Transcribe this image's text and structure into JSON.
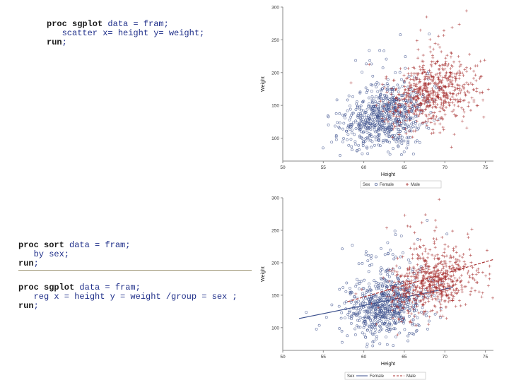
{
  "code_blocks": [
    {
      "lines": [
        {
          "kw": "proc sgplot",
          "rest": " data = fram;"
        },
        {
          "kw": "",
          "rest": "   scatter x= height y= weight;"
        },
        {
          "kw": "run",
          "rest": ";"
        }
      ]
    },
    {
      "lines": [
        {
          "kw": "proc sort",
          "rest": " data = fram;"
        },
        {
          "kw": "",
          "rest": "   by sex;"
        },
        {
          "kw": "run",
          "rest": ";"
        }
      ]
    },
    {
      "lines": [
        {
          "kw": "proc sgplot",
          "rest": " data = fram;"
        },
        {
          "kw": "",
          "rest": "   reg x = height y = weight /group = sex ;"
        },
        {
          "kw": "run",
          "rest": ";"
        }
      ]
    }
  ],
  "colors": {
    "female": "#3b4f8c",
    "male": "#a83232",
    "axis": "#888888"
  },
  "chart_data": [
    {
      "type": "scatter",
      "title": "",
      "xlabel": "Height",
      "ylabel": "Weight",
      "xlim": [
        50,
        76
      ],
      "ylim": [
        65,
        300
      ],
      "xticks": [
        50,
        55,
        60,
        65,
        70,
        75
      ],
      "yticks": [
        100,
        150,
        200,
        250,
        300
      ],
      "legend": {
        "title": "Sex",
        "position": "bottom",
        "entries": [
          {
            "name": "Female",
            "marker": "circle"
          },
          {
            "name": "Male",
            "marker": "plus"
          }
        ]
      },
      "series": [
        {
          "name": "Female",
          "marker": "circle",
          "height_mean": 62.5,
          "height_sd": 2.5,
          "weight_mean": 133,
          "weight_sd": 24,
          "approx_n": 700
        },
        {
          "name": "Male",
          "marker": "plus",
          "height_mean": 68.5,
          "height_sd": 2.7,
          "weight_mean": 170,
          "weight_sd": 25,
          "approx_n": 650
        }
      ]
    },
    {
      "type": "scatter",
      "title": "",
      "xlabel": "Height",
      "ylabel": "Weight",
      "xlim": [
        50,
        76
      ],
      "ylim": [
        65,
        300
      ],
      "xticks": [
        50,
        55,
        60,
        65,
        70,
        75
      ],
      "yticks": [
        100,
        150,
        200,
        250,
        300
      ],
      "legend": {
        "title": "Sex",
        "position": "bottom",
        "entries": [
          {
            "name": "Female",
            "marker": "line"
          },
          {
            "name": "Male",
            "marker": "dash"
          }
        ]
      },
      "series": [
        {
          "name": "Female",
          "marker": "circle",
          "height_mean": 62.5,
          "height_sd": 2.5,
          "weight_mean": 133,
          "weight_sd": 24,
          "approx_n": 700,
          "fit": {
            "x": [
              52,
              71
            ],
            "y": [
              114,
              162
            ]
          }
        },
        {
          "name": "Male",
          "marker": "plus",
          "height_mean": 68.5,
          "height_sd": 2.7,
          "weight_mean": 170,
          "weight_sd": 25,
          "approx_n": 650,
          "fit": {
            "x": [
              58,
              76
            ],
            "y": [
              140,
              205
            ]
          }
        }
      ]
    }
  ]
}
